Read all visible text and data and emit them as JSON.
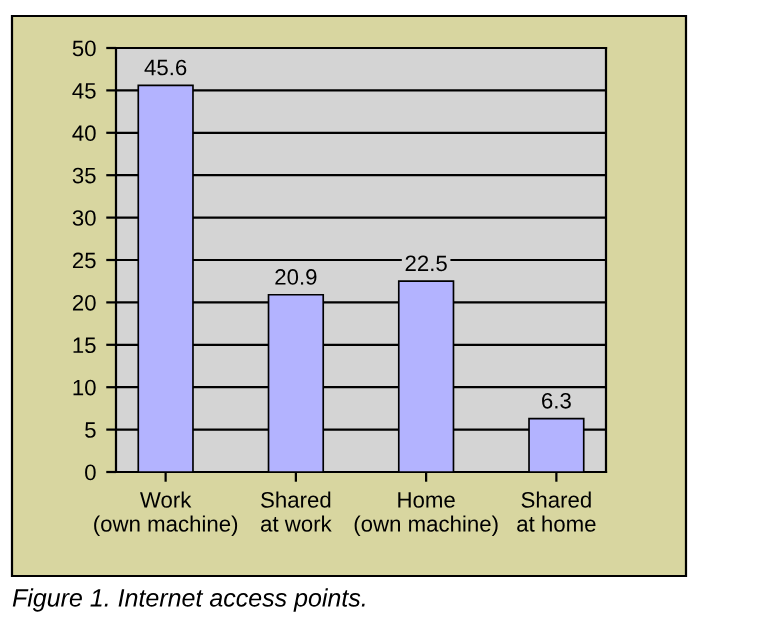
{
  "chart_data": {
    "type": "bar",
    "categories": [
      "Work (own machine)",
      "Shared at work",
      "Home (own machine)",
      "Shared at home"
    ],
    "values": [
      45.6,
      20.9,
      22.5,
      6.3
    ],
    "color": "#b3b3ff",
    "ylim": [
      0,
      50
    ],
    "yticks": [
      0,
      5,
      10,
      15,
      20,
      25,
      30,
      35,
      40,
      45,
      50
    ],
    "grid": "y",
    "data_labels": true,
    "annotations": [
      "Figure 1. Internet access points."
    ]
  }
}
